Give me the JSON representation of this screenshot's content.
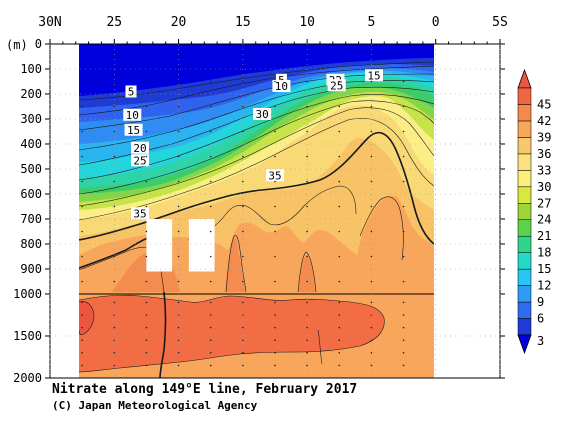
{
  "chart_data": {
    "type": "heatmap",
    "title": "Nitrate along 149°E line, February 2017",
    "credit": "(C) Japan Meteorological Agency",
    "ylabel": "(m)",
    "x_ticks": [
      "30N",
      "25",
      "20",
      "15",
      "10",
      "5",
      "0",
      "5S"
    ],
    "x_tick_values": [
      30,
      25,
      20,
      15,
      10,
      5,
      0,
      -5
    ],
    "xlim": [
      30,
      -5
    ],
    "y_ticks_upper": [
      "0",
      "100",
      "200",
      "300",
      "400",
      "500",
      "600",
      "700",
      "800",
      "900",
      "1000"
    ],
    "y_ticks_upper_values": [
      0,
      100,
      200,
      300,
      400,
      500,
      600,
      700,
      800,
      900,
      1000
    ],
    "y_ticks_lower": [
      "1500",
      "2000"
    ],
    "y_ticks_lower_values": [
      1500,
      2000
    ],
    "ylim": [
      0,
      2000
    ],
    "y_scale_break": 1000,
    "data_extent_lat": [
      28.5,
      0
    ],
    "colorbar": {
      "levels": [
        "3",
        "6",
        "9",
        "12",
        "15",
        "18",
        "21",
        "24",
        "27",
        "30",
        "33",
        "36",
        "39",
        "42",
        "45"
      ],
      "level_values": [
        3,
        6,
        9,
        12,
        15,
        18,
        21,
        24,
        27,
        30,
        33,
        36,
        39,
        42,
        45
      ],
      "colors": [
        "#1f3bd6",
        "#2f6cf0",
        "#2f9cf4",
        "#28c6f2",
        "#24d9c8",
        "#2fd58a",
        "#5ed14a",
        "#9ed63a",
        "#d8e83e",
        "#fbf07a",
        "#fbe27f",
        "#f8c86c",
        "#f6a95c",
        "#f58a4e",
        "#f06644"
      ],
      "above_color": "#ee5540",
      "below_color": "#0000dc"
    },
    "contour_labels": [
      {
        "text": "5",
        "lat": 23.7,
        "depth": 190
      },
      {
        "text": "10",
        "lat": 23.6,
        "depth": 283
      },
      {
        "text": "15",
        "lat": 23.5,
        "depth": 343
      },
      {
        "text": "20",
        "lat": 23.0,
        "depth": 415
      },
      {
        "text": "25",
        "lat": 23.0,
        "depth": 465
      },
      {
        "text": "35",
        "lat": 23.0,
        "depth": 677
      },
      {
        "text": "5",
        "lat": 12.0,
        "depth": 143
      },
      {
        "text": "10",
        "lat": 12.0,
        "depth": 168
      },
      {
        "text": "22",
        "lat": 7.8,
        "depth": 143
      },
      {
        "text": "25",
        "lat": 7.7,
        "depth": 165
      },
      {
        "text": "15",
        "lat": 4.8,
        "depth": 125
      },
      {
        "text": "30",
        "lat": 13.5,
        "depth": 280
      },
      {
        "text": "35",
        "lat": 12.5,
        "depth": 525
      }
    ],
    "data_gaps": [
      {
        "lat_from": 22.5,
        "lat_to": 20.5,
        "depth_from": 700,
        "depth_to": 910
      },
      {
        "lat_from": 19.2,
        "lat_to": 17.2,
        "depth_from": 700,
        "depth_to": 910
      }
    ]
  }
}
